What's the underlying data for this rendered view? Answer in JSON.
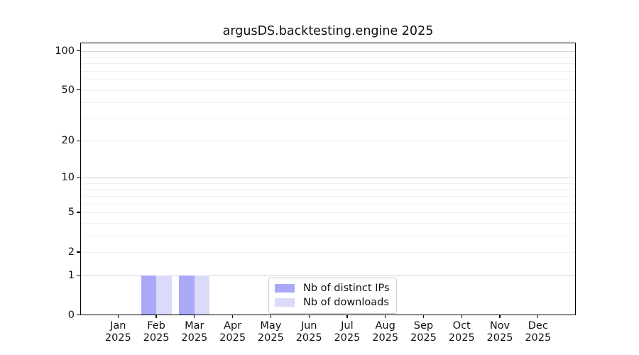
{
  "chart_data": {
    "type": "bar",
    "title": "argusDS.backtesting.engine 2025",
    "x_tick_months": [
      "Jan",
      "Feb",
      "Mar",
      "Apr",
      "May",
      "Jun",
      "Jul",
      "Aug",
      "Sep",
      "Oct",
      "Nov",
      "Dec"
    ],
    "x_tick_year": "2025",
    "series": [
      {
        "name": "Nb of distinct IPs",
        "color": "#a9a9f8",
        "values": [
          0,
          1,
          1,
          0,
          0,
          0,
          0,
          0,
          0,
          0,
          0,
          0
        ]
      },
      {
        "name": "Nb of downloads",
        "color": "#dadaf9",
        "values": [
          0,
          1,
          1,
          0,
          0,
          0,
          0,
          0,
          0,
          0,
          0,
          0
        ]
      }
    ],
    "yscale": "log1p",
    "ylim": [
      0,
      113
    ],
    "y_tick_values": [
      0,
      1,
      2,
      5,
      10,
      20,
      50,
      100
    ],
    "y_tick_labels": [
      "0",
      "1",
      "2",
      "5",
      "10",
      "20",
      "50",
      "100"
    ],
    "y_major_gridlines": [
      1,
      10,
      100
    ],
    "y_minor_gridlines": [
      2,
      3,
      4,
      5,
      6,
      7,
      8,
      9,
      20,
      30,
      40,
      50,
      60,
      70,
      80,
      90
    ],
    "grid": "horizontal",
    "legend_position": "lower center",
    "colors": {
      "major_grid": "#d6d6d6",
      "minor_grid": "#f0f0f0",
      "spine": "#000000",
      "text": "#111111",
      "background": "#ffffff"
    }
  }
}
